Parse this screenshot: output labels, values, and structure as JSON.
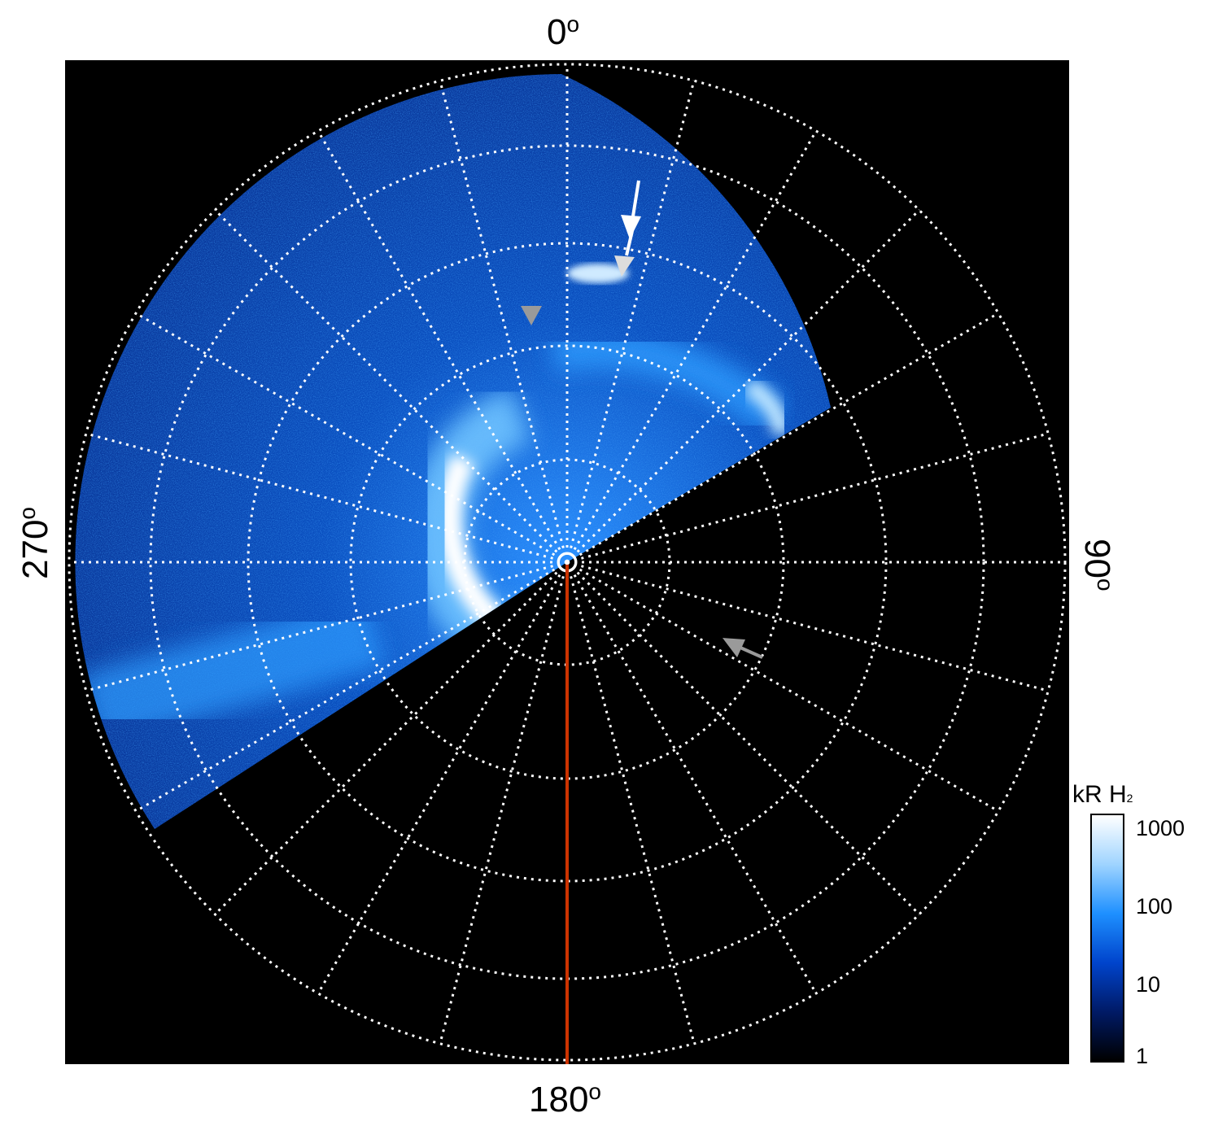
{
  "polar_labels": {
    "top": "0",
    "right": "90",
    "bottom": "180",
    "left": "270",
    "degree_symbol": "o"
  },
  "colorbar": {
    "title_main": "kR H",
    "title_sub": "2",
    "tick_labels": [
      "1000",
      "100",
      "10",
      "1"
    ],
    "colors": [
      "#000000",
      "#001a66",
      "#0044cc",
      "#1e90ff",
      "#9fd4ff",
      "#ffffff"
    ]
  },
  "image": {
    "background_color": "#000000",
    "grid_color": "#ffffff",
    "meridian_line_color": "#cc3300",
    "arrow_colors": {
      "white": "#ffffff",
      "gray": "#9a9a9a"
    }
  }
}
